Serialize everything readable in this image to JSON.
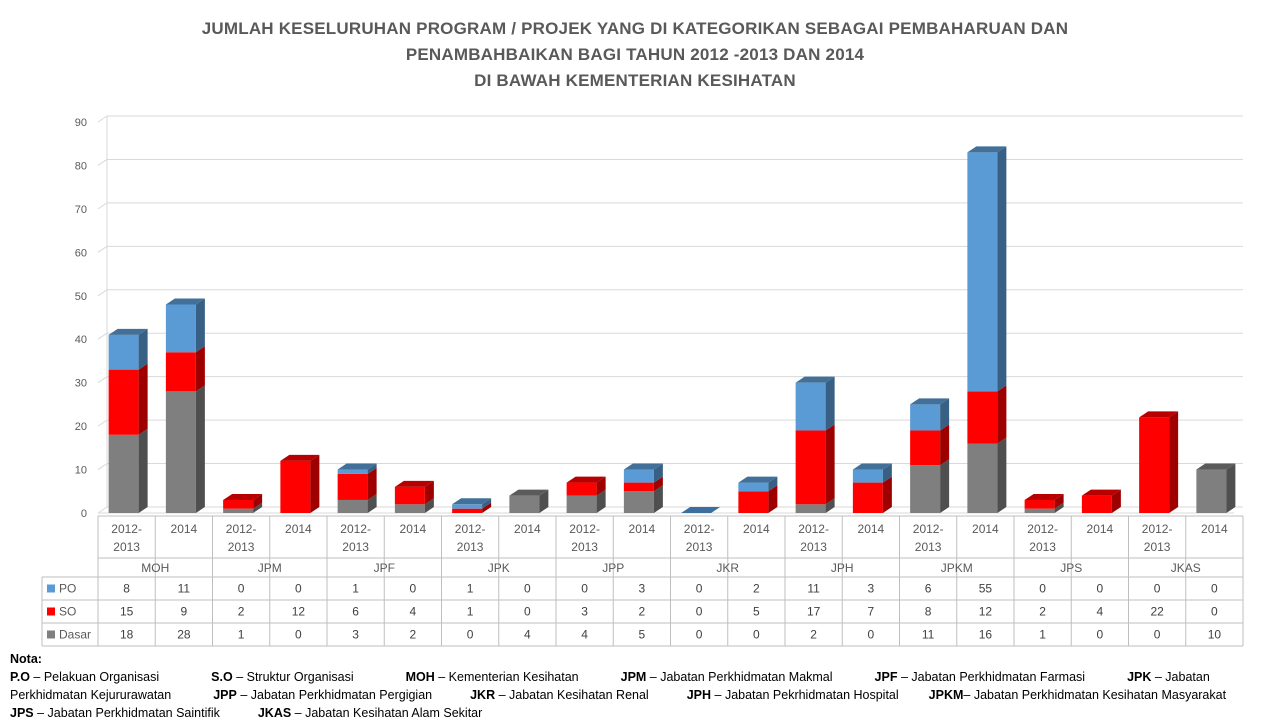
{
  "chart_data": {
    "type": "bar",
    "stacked": true,
    "title": [
      "JUMLAH KESELURUHAN PROGRAM / PROJEK YANG DI KATEGORIKAN SEBAGAI PEMBAHARUAN DAN",
      "PENAMBAHBAIKAN BAGI TAHUN 2012 -2013 DAN 2014",
      "DI BAWAH KEMENTERIAN KESIHATAN"
    ],
    "groups": [
      "MOH",
      "JPM",
      "JPF",
      "JPK",
      "JPP",
      "JKR",
      "JPH",
      "JPKM",
      "JPS",
      "JKAS"
    ],
    "sub_labels": [
      "2012 - 2013",
      "2014"
    ],
    "categories": [
      "MOH 2012-2013",
      "MOH 2014",
      "JPM 2012-2013",
      "JPM 2014",
      "JPF 2012-2013",
      "JPF 2014",
      "JPK 2012-2013",
      "JPK 2014",
      "JPP 2012-2013",
      "JPP 2014",
      "JKR 2012-2013",
      "JKR 2014",
      "JPH 2012-2013",
      "JPH 2014",
      "JPKM 2012-2013",
      "JPKM 2014",
      "JPS 2012-2013",
      "JPS 2014",
      "JKAS 2012-2013",
      "JKAS 2014"
    ],
    "series": [
      {
        "name": "PO",
        "color": "#5B9BD5",
        "values": [
          8,
          11,
          0,
          0,
          1,
          0,
          1,
          0,
          0,
          3,
          0,
          2,
          11,
          3,
          6,
          55,
          0,
          0,
          0,
          0
        ]
      },
      {
        "name": "SO",
        "color": "#FF0000",
        "values": [
          15,
          9,
          2,
          12,
          6,
          4,
          1,
          0,
          3,
          2,
          0,
          5,
          17,
          7,
          8,
          12,
          2,
          4,
          22,
          0
        ]
      },
      {
        "name": "Dasar",
        "color": "#7F7F7F",
        "values": [
          18,
          28,
          1,
          0,
          3,
          2,
          0,
          4,
          4,
          5,
          0,
          0,
          2,
          0,
          11,
          16,
          1,
          0,
          0,
          10
        ]
      }
    ],
    "ylim": [
      0,
      90
    ],
    "yticks": [
      0,
      10,
      20,
      30,
      40,
      50,
      60,
      70,
      80,
      90
    ],
    "grid": true,
    "legend": "data-table-left"
  },
  "notes": {
    "heading": "Nota:",
    "lines": [
      [
        {
          "b": "P.O",
          "t": " – Pelakuan Organisasi"
        },
        {
          "b": "S.O",
          "t": " – Struktur Organisasi"
        },
        {
          "b": "MOH",
          "t": " – Kementerian Kesihatan"
        },
        {
          "b": "JPM",
          "t": " – Jabatan Perkhidmatan Makmal"
        },
        {
          "b": "JPF",
          "t": " – Jabatan Perkhidmatan Farmasi"
        },
        {
          "b": "JPK",
          "t": " – Jabatan"
        }
      ],
      [
        {
          "b": "",
          "t": "Perkhidmatan Kejururawatan"
        },
        {
          "b": "JPP",
          "t": " – Jabatan Perkhidmatan Pergigian"
        },
        {
          "b": "JKR",
          "t": " – Jabatan Kesihatan Renal"
        },
        {
          "b": "JPH",
          "t": " – Jabatan Pekrhidmatan Hospital"
        },
        {
          "b": "JPKM",
          "t": "– Jabatan Perkhidmatan Kesihatan Masyarakat"
        }
      ],
      [
        {
          "b": "JPS",
          "t": " – Jabatan Perkhidmatan Saintifik"
        },
        {
          "b": "JKAS",
          "t": " – Jabatan Kesihatan Alam Sekitar"
        }
      ]
    ]
  }
}
